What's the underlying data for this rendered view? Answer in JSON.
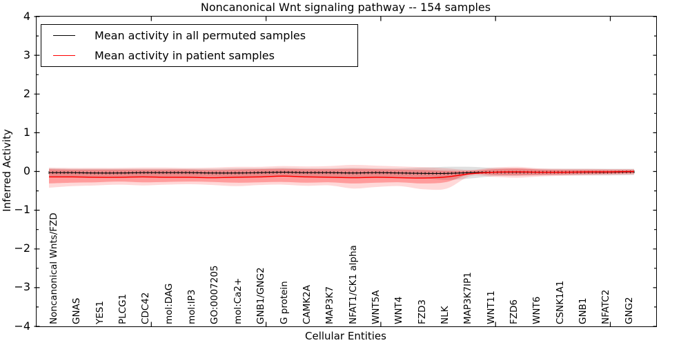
{
  "chart_data": {
    "type": "line",
    "title": "Noncanonical Wnt signaling pathway -- 154 samples",
    "xlabel": "Cellular Entities",
    "ylabel": "Inferred Activity",
    "ylim": [
      -4,
      4
    ],
    "yticks": [
      4,
      3,
      2,
      1,
      0,
      -1,
      -2,
      -3,
      -4
    ],
    "xlim_numeric": [
      0,
      27
    ],
    "xticks_numeric": [
      5,
      10,
      15,
      20,
      25
    ],
    "grid": false,
    "legend_position": "upper left",
    "legend": [
      {
        "label": "Mean activity in all permuted samples",
        "color": "#000000"
      },
      {
        "label": "Mean activity in patient samples",
        "color": "#ff0000"
      }
    ],
    "categories": [
      "Noncanonical Wnts/FZD",
      "GNAS",
      "YES1",
      "PLCG1",
      "CDC42",
      "mol:DAG",
      "mol:IP3",
      "GO:0007205",
      "mol:Ca2+",
      "GNB1/GNG2",
      "G protein",
      "CAMK2A",
      "MAP3K7",
      "NFAT1/CK1 alpha",
      "WNT5A",
      "WNT4",
      "FZD3",
      "NLK",
      "MAP3K7IP1",
      "WNT11",
      "FZD6",
      "WNT6",
      "CSNK1A1",
      "GNB1",
      "NFATC2",
      "GNG2"
    ],
    "series": [
      {
        "name": "Mean activity in all permuted samples",
        "color": "#000000",
        "values": [
          -0.03,
          -0.03,
          -0.04,
          -0.04,
          -0.03,
          -0.03,
          -0.03,
          -0.04,
          -0.04,
          -0.03,
          -0.02,
          -0.03,
          -0.03,
          -0.04,
          -0.03,
          -0.04,
          -0.05,
          -0.05,
          -0.03,
          -0.02,
          -0.02,
          -0.02,
          -0.02,
          -0.02,
          -0.02,
          -0.01
        ]
      },
      {
        "name": "Mean activity in patient samples",
        "color": "#ff0000",
        "values": [
          -0.14,
          -0.14,
          -0.15,
          -0.15,
          -0.14,
          -0.15,
          -0.15,
          -0.16,
          -0.15,
          -0.14,
          -0.12,
          -0.14,
          -0.15,
          -0.16,
          -0.15,
          -0.16,
          -0.17,
          -0.14,
          -0.06,
          -0.02,
          -0.01,
          -0.02,
          -0.02,
          -0.01,
          -0.01,
          0.0
        ]
      }
    ],
    "bands": [
      {
        "name": "permuted-range",
        "color": "#000000",
        "opacity": 0.12,
        "top": [
          0.08,
          0.07,
          0.07,
          0.07,
          0.07,
          0.07,
          0.07,
          0.07,
          0.08,
          0.08,
          0.09,
          0.08,
          0.08,
          0.09,
          0.08,
          0.08,
          0.1,
          0.12,
          0.12,
          0.09,
          0.08,
          0.07,
          0.07,
          0.07,
          0.07,
          0.07
        ],
        "bottom": [
          -0.14,
          -0.13,
          -0.13,
          -0.13,
          -0.13,
          -0.13,
          -0.13,
          -0.13,
          -0.14,
          -0.14,
          -0.13,
          -0.14,
          -0.14,
          -0.15,
          -0.14,
          -0.14,
          -0.17,
          -0.22,
          -0.18,
          -0.12,
          -0.11,
          -0.1,
          -0.1,
          -0.1,
          -0.1,
          -0.09
        ]
      },
      {
        "name": "patient-range-outer",
        "color": "#ff0000",
        "opacity": 0.15,
        "top": [
          0.1,
          0.09,
          0.09,
          0.09,
          0.1,
          0.1,
          0.09,
          0.1,
          0.12,
          0.12,
          0.14,
          0.13,
          0.14,
          0.17,
          0.15,
          0.13,
          0.11,
          0.08,
          0.04,
          0.1,
          0.12,
          0.08,
          0.07,
          0.07,
          0.06,
          0.06
        ],
        "bottom": [
          -0.42,
          -0.38,
          -0.36,
          -0.34,
          -0.36,
          -0.34,
          -0.33,
          -0.35,
          -0.38,
          -0.35,
          -0.34,
          -0.37,
          -0.36,
          -0.44,
          -0.4,
          -0.38,
          -0.46,
          -0.44,
          -0.12,
          -0.14,
          -0.16,
          -0.13,
          -0.11,
          -0.1,
          -0.09,
          -0.08
        ]
      },
      {
        "name": "patient-range-inner",
        "color": "#ff0000",
        "opacity": 0.28,
        "top": [
          0.06,
          0.05,
          0.05,
          0.05,
          0.05,
          0.05,
          0.05,
          0.04,
          0.05,
          0.06,
          0.07,
          0.06,
          0.06,
          0.07,
          0.06,
          0.05,
          0.04,
          0.02,
          0.02,
          0.06,
          0.08,
          0.05,
          0.04,
          0.04,
          0.04,
          0.04
        ],
        "bottom": [
          -0.31,
          -0.29,
          -0.28,
          -0.26,
          -0.28,
          -0.27,
          -0.26,
          -0.27,
          -0.29,
          -0.28,
          -0.27,
          -0.29,
          -0.28,
          -0.31,
          -0.29,
          -0.28,
          -0.31,
          -0.27,
          -0.07,
          -0.09,
          -0.1,
          -0.09,
          -0.08,
          -0.07,
          -0.06,
          -0.05
        ]
      }
    ]
  }
}
